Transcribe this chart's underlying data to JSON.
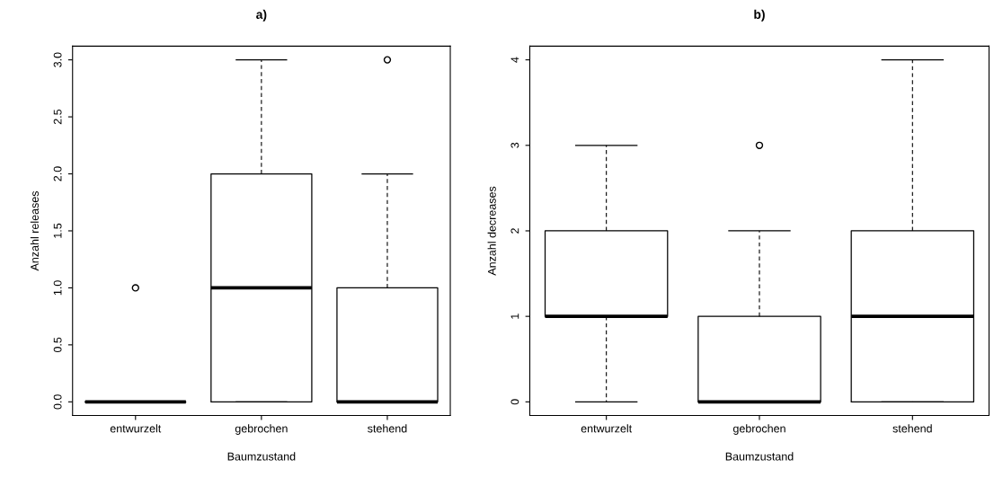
{
  "chart_data": [
    {
      "type": "box",
      "title": "a)",
      "xlabel": "Baumzustand",
      "ylabel": "Anzahl releases",
      "categories": [
        "entwurzelt",
        "gebrochen",
        "stehend"
      ],
      "boxes": [
        {
          "low": 0,
          "q1": 0,
          "median": 0,
          "q3": 0,
          "high": 0,
          "outliers": [
            1
          ]
        },
        {
          "low": 0,
          "q1": 0,
          "median": 1,
          "q3": 2,
          "high": 3
        },
        {
          "low": 0,
          "q1": 0,
          "median": 0,
          "q3": 1,
          "high": 2,
          "outliers": [
            3
          ]
        }
      ],
      "ylim": [
        -0.12,
        3.12
      ],
      "yticks": [
        {
          "value": 0,
          "label": "0.0"
        },
        {
          "value": 0.5,
          "label": "0.5"
        },
        {
          "value": 1,
          "label": "1.0"
        },
        {
          "value": 1.5,
          "label": "1.5"
        },
        {
          "value": 2,
          "label": "2.0"
        },
        {
          "value": 2.5,
          "label": "2.5"
        },
        {
          "value": 3,
          "label": "3.0"
        }
      ]
    },
    {
      "type": "box",
      "title": "b)",
      "xlabel": "Baumzustand",
      "ylabel": "Anzahl decreases",
      "categories": [
        "entwurzelt",
        "gebrochen",
        "stehend"
      ],
      "boxes": [
        {
          "low": 0,
          "q1": 1,
          "median": 1,
          "q3": 2,
          "high": 3
        },
        {
          "low": 0,
          "q1": 0,
          "median": 0,
          "q3": 1,
          "high": 2,
          "outliers": [
            3
          ]
        },
        {
          "low": 0,
          "q1": 0,
          "median": 1,
          "q3": 2,
          "high": 4
        }
      ],
      "ylim": [
        -0.16,
        4.16
      ],
      "yticks": [
        0,
        1,
        2,
        3,
        4
      ]
    }
  ]
}
